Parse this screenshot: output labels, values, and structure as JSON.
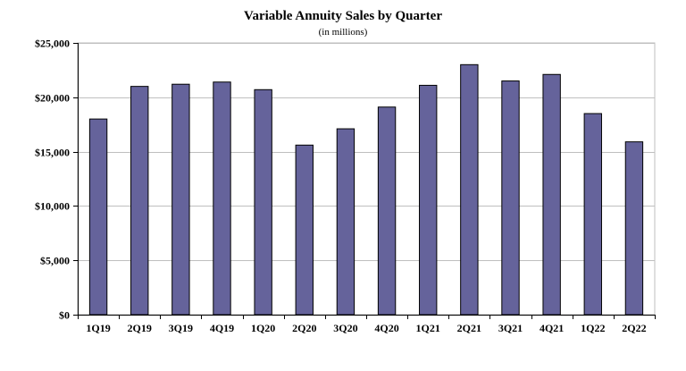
{
  "chart_data": {
    "type": "bar",
    "title": "Variable Annuity Sales by Quarter",
    "subtitle": "(in millions)",
    "xlabel": "",
    "ylabel": "",
    "categories": [
      "1Q19",
      "2Q19",
      "3Q19",
      "4Q19",
      "1Q20",
      "2Q20",
      "3Q20",
      "4Q20",
      "1Q21",
      "2Q21",
      "3Q21",
      "4Q21",
      "1Q22",
      "2Q22"
    ],
    "values": [
      18000,
      21000,
      21200,
      21400,
      20700,
      15600,
      17100,
      19100,
      21100,
      23000,
      21500,
      22100,
      18500,
      15900
    ],
    "ylim": [
      0,
      25000
    ],
    "yticks": [
      0,
      5000,
      10000,
      15000,
      20000,
      25000
    ],
    "ytick_labels": [
      "$0",
      "$5,000",
      "$10,000",
      "$15,000",
      "$20,000",
      "$25,000"
    ],
    "grid": true,
    "legend": "none",
    "bar_color": "#65639b",
    "bar_edge_color": "#000000",
    "grid_color": "#bfbfbf",
    "axis_color": "#000000"
  }
}
